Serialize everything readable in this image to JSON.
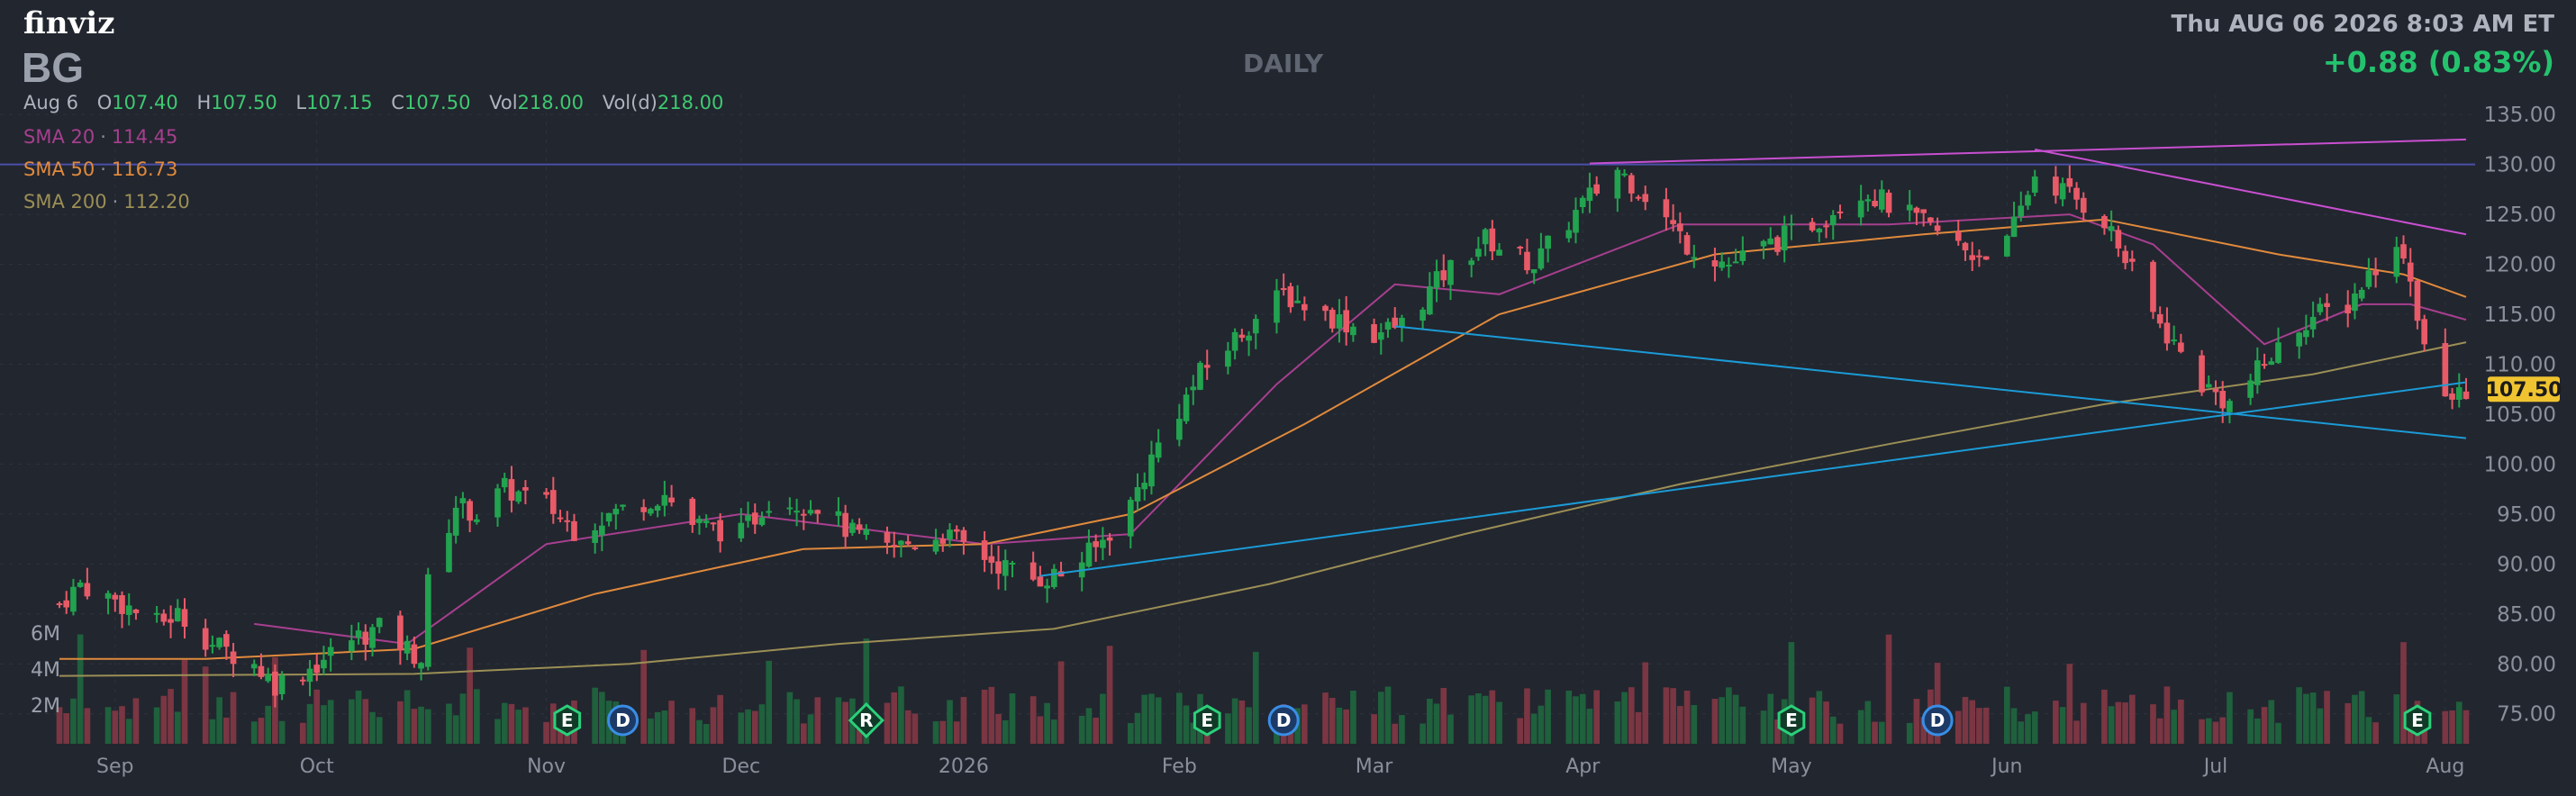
{
  "header": {
    "logo": "finviz",
    "ticker": "BG",
    "timeframe": "DAILY",
    "datetime": "Thu AUG 06 2026 8:03 AM ET",
    "change": "+0.88 (0.83%)"
  },
  "ohlc": {
    "date": "Aug 6",
    "open_label": "O",
    "open": "107.40",
    "high_label": "H",
    "high": "107.50",
    "low_label": "L",
    "low": "107.15",
    "close_label": "C",
    "close": "107.50",
    "vol_label": "Vol",
    "vol": "218.00",
    "vold_label": "Vol(d)",
    "vold": "218.00"
  },
  "sma": [
    {
      "label": "SMA 20",
      "value": "114.45",
      "color": "#a63f8e"
    },
    {
      "label": "SMA 50",
      "value": "116.73",
      "color": "#e08a3c"
    },
    {
      "label": "SMA 200",
      "value": "112.20",
      "color": "#9b8f55"
    }
  ],
  "colors": {
    "up": "#22a34f",
    "down": "#e85a68",
    "vol_up": "#1e6b3f",
    "vol_down": "#8a3a45",
    "trend_blue": "#1b9bd6",
    "trend_magenta": "#c84fd0",
    "hline": "#4a4fa8",
    "grid": "#2e333d",
    "price_badge": "#f0c430"
  },
  "chart_data": {
    "type": "candlestick",
    "yaxis_side": "right",
    "ylim": [
      72,
      137
    ],
    "yticks": [
      "75.00",
      "80.00",
      "85.00",
      "90.00",
      "95.00",
      "100.00",
      "105.00",
      "110.00",
      "115.00",
      "120.00",
      "125.00",
      "130.00",
      "135.00"
    ],
    "last_price": "107.50",
    "vol_ticks": [
      "2M",
      "4M",
      "6M"
    ],
    "x_range": [
      "2025-08-25",
      "2026-08-06"
    ],
    "xticks": [
      {
        "label": "Sep",
        "date": "2025-09-02"
      },
      {
        "label": "Oct",
        "date": "2025-10-01"
      },
      {
        "label": "Nov",
        "date": "2025-11-03"
      },
      {
        "label": "Dec",
        "date": "2025-12-01"
      },
      {
        "label": "2026",
        "date": "2026-01-02"
      },
      {
        "label": "Feb",
        "date": "2026-02-02"
      },
      {
        "label": "Mar",
        "date": "2026-03-02"
      },
      {
        "label": "Apr",
        "date": "2026-04-01"
      },
      {
        "label": "May",
        "date": "2026-05-01"
      },
      {
        "label": "Jun",
        "date": "2026-06-01"
      },
      {
        "label": "Jul",
        "date": "2026-07-01"
      },
      {
        "label": "Aug",
        "date": "2026-08-03"
      }
    ],
    "price_path": [
      [
        "2025-08-25",
        86.0
      ],
      [
        "2025-08-28",
        88.0
      ],
      [
        "2025-09-03",
        86.0
      ],
      [
        "2025-09-08",
        84.0
      ],
      [
        "2025-09-11",
        85.0
      ],
      [
        "2025-09-16",
        82.0
      ],
      [
        "2025-09-22",
        80.0
      ],
      [
        "2025-09-25",
        78.0
      ],
      [
        "2025-10-01",
        80.0
      ],
      [
        "2025-10-06",
        82.5
      ],
      [
        "2025-10-10",
        83.5
      ],
      [
        "2025-10-14",
        81.5
      ],
      [
        "2025-10-16",
        80.5
      ],
      [
        "2025-10-17",
        88.0
      ],
      [
        "2025-10-21",
        96.0
      ],
      [
        "2025-10-24",
        95.0
      ],
      [
        "2025-10-28",
        97.5
      ],
      [
        "2025-11-03",
        96.0
      ],
      [
        "2025-11-07",
        93.5
      ],
      [
        "2025-11-14",
        95.5
      ],
      [
        "2025-11-20",
        97.0
      ],
      [
        "2025-11-24",
        94.0
      ],
      [
        "2025-12-01",
        93.0
      ],
      [
        "2025-12-05",
        96.5
      ],
      [
        "2025-12-12",
        96.0
      ],
      [
        "2025-12-17",
        93.0
      ],
      [
        "2025-12-22",
        91.5
      ],
      [
        "2025-12-30",
        93.0
      ],
      [
        "2026-01-07",
        90.0
      ],
      [
        "2026-01-12",
        88.5
      ],
      [
        "2026-01-16",
        89.0
      ],
      [
        "2026-01-21",
        91.5
      ],
      [
        "2026-01-26",
        96.0
      ],
      [
        "2026-01-30",
        102.0
      ],
      [
        "2026-02-05",
        109.0
      ],
      [
        "2026-02-12",
        114.0
      ],
      [
        "2026-02-17",
        117.0
      ],
      [
        "2026-02-23",
        115.0
      ],
      [
        "2026-03-02",
        113.0
      ],
      [
        "2026-03-06",
        114.0
      ],
      [
        "2026-03-12",
        119.0
      ],
      [
        "2026-03-18",
        122.5
      ],
      [
        "2026-03-25",
        120.0
      ],
      [
        "2026-04-01",
        126.0
      ],
      [
        "2026-04-06",
        129.5
      ],
      [
        "2026-04-10",
        127.0
      ],
      [
        "2026-04-16",
        122.0
      ],
      [
        "2026-04-22",
        120.0
      ],
      [
        "2026-04-28",
        122.0
      ],
      [
        "2026-05-05",
        124.5
      ],
      [
        "2026-05-11",
        127.5
      ],
      [
        "2026-05-15",
        126.0
      ],
      [
        "2026-05-20",
        124.0
      ],
      [
        "2026-05-27",
        121.0
      ],
      [
        "2026-06-01",
        122.0
      ],
      [
        "2026-06-05",
        129.0
      ],
      [
        "2026-06-10",
        127.0
      ],
      [
        "2026-06-15",
        124.5
      ],
      [
        "2026-06-22",
        115.0
      ],
      [
        "2026-06-29",
        108.0
      ],
      [
        "2026-07-03",
        106.0
      ],
      [
        "2026-07-08",
        110.0
      ],
      [
        "2026-07-14",
        114.5
      ],
      [
        "2026-07-20",
        116.0
      ],
      [
        "2026-07-24",
        120.0
      ],
      [
        "2026-07-28",
        121.5
      ],
      [
        "2026-07-31",
        112.0
      ],
      [
        "2026-08-03",
        106.0
      ],
      [
        "2026-08-06",
        107.5
      ]
    ],
    "sma_paths": {
      "SMA 20": [
        [
          "2025-09-22",
          84.0
        ],
        [
          "2025-10-14",
          82.0
        ],
        [
          "2025-11-03",
          92.0
        ],
        [
          "2025-12-01",
          95.0
        ],
        [
          "2026-01-05",
          92.0
        ],
        [
          "2026-01-26",
          93.0
        ],
        [
          "2026-02-16",
          108.0
        ],
        [
          "2026-03-05",
          118.0
        ],
        [
          "2026-03-20",
          117.0
        ],
        [
          "2026-04-15",
          124.0
        ],
        [
          "2026-05-15",
          124.0
        ],
        [
          "2026-06-10",
          125.0
        ],
        [
          "2026-06-22",
          122.0
        ],
        [
          "2026-07-08",
          112.0
        ],
        [
          "2026-07-22",
          116.0
        ],
        [
          "2026-07-29",
          116.0
        ],
        [
          "2026-08-06",
          114.45
        ]
      ],
      "SMA 50": [
        [
          "2025-08-25",
          80.5
        ],
        [
          "2025-09-15",
          80.5
        ],
        [
          "2025-10-15",
          81.5
        ],
        [
          "2025-11-10",
          87.0
        ],
        [
          "2025-12-10",
          91.5
        ],
        [
          "2026-01-05",
          92.0
        ],
        [
          "2026-01-26",
          95.0
        ],
        [
          "2026-02-20",
          104.0
        ],
        [
          "2026-03-20",
          115.0
        ],
        [
          "2026-04-20",
          121.0
        ],
        [
          "2026-05-20",
          123.0
        ],
        [
          "2026-06-15",
          124.5
        ],
        [
          "2026-07-10",
          121.0
        ],
        [
          "2026-07-28",
          119.0
        ],
        [
          "2026-08-06",
          116.73
        ]
      ],
      "SMA 200": [
        [
          "2025-08-25",
          78.8
        ],
        [
          "2025-10-15",
          79.0
        ],
        [
          "2025-11-15",
          80.0
        ],
        [
          "2025-12-15",
          82.0
        ],
        [
          "2026-01-15",
          83.5
        ],
        [
          "2026-02-15",
          88.0
        ],
        [
          "2026-03-15",
          93.0
        ],
        [
          "2026-04-15",
          98.0
        ],
        [
          "2026-05-15",
          102.0
        ],
        [
          "2026-06-15",
          106.0
        ],
        [
          "2026-07-15",
          109.0
        ],
        [
          "2026-08-06",
          112.2
        ]
      ]
    },
    "trendlines": [
      {
        "color": "#1b9bd6",
        "from": [
          "2026-01-13",
          88.8
        ],
        "to": [
          "2026-08-06",
          108.2
        ]
      },
      {
        "color": "#1b9bd6",
        "from": [
          "2026-03-05",
          113.8
        ],
        "to": [
          "2026-08-06",
          102.6
        ]
      },
      {
        "color": "#c84fd0",
        "from": [
          "2026-04-02",
          130.1
        ],
        "to": [
          "2026-08-06",
          132.5
        ]
      },
      {
        "color": "#c84fd0",
        "from": [
          "2026-06-05",
          131.5
        ],
        "to": [
          "2026-08-06",
          123.0
        ]
      }
    ],
    "hline": 130.0,
    "events": [
      {
        "type": "E",
        "date": "2025-11-06",
        "shape": "hex"
      },
      {
        "type": "D",
        "date": "2025-11-14",
        "shape": "circle"
      },
      {
        "type": "R",
        "date": "2025-12-19",
        "shape": "diamond"
      },
      {
        "type": "E",
        "date": "2026-02-06",
        "shape": "hex"
      },
      {
        "type": "D",
        "date": "2026-02-17",
        "shape": "circle"
      },
      {
        "type": "E",
        "date": "2026-05-01",
        "shape": "hex"
      },
      {
        "type": "D",
        "date": "2026-05-22",
        "shape": "circle"
      },
      {
        "type": "E",
        "date": "2026-07-30",
        "shape": "hex"
      }
    ]
  }
}
